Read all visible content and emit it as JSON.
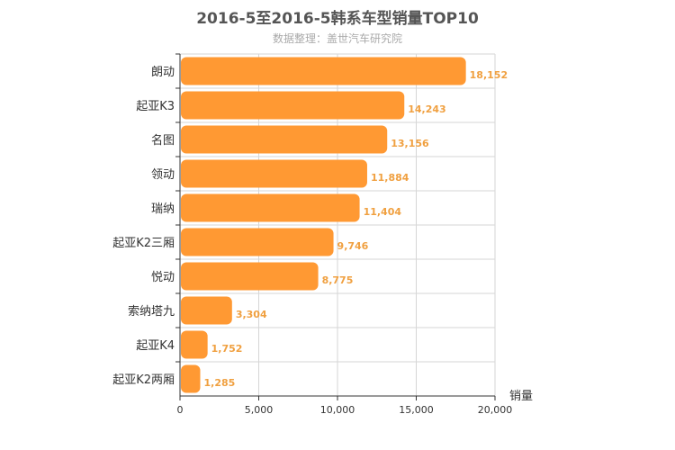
{
  "chart_data": {
    "type": "bar",
    "orientation": "horizontal",
    "title": "2016-5至2016-5韩系车型销量TOP10",
    "subtitle": "数据整理：盖世汽车研究院",
    "xlabel": "销量",
    "ylabel": "",
    "categories": [
      "朗动",
      "起亚K3",
      "名图",
      "领动",
      "瑞纳",
      "起亚K2三厢",
      "悦动",
      "索纳塔九",
      "起亚K4",
      "起亚K2两厢"
    ],
    "values": [
      18152,
      14243,
      13156,
      11884,
      11404,
      9746,
      8775,
      3304,
      1752,
      1285
    ],
    "value_labels": [
      "18,152",
      "14,243",
      "13,156",
      "11,884",
      "11,404",
      "9,746",
      "8,775",
      "3,304",
      "1,752",
      "1,285"
    ],
    "xlim": [
      0,
      20000
    ],
    "x_ticks": [
      0,
      5000,
      10000,
      15000,
      20000
    ],
    "x_tick_labels": [
      "0",
      "5,000",
      "10,000",
      "15,000",
      "20,000"
    ],
    "grid": true,
    "bar_color": "#ff9933",
    "label_color": "#f0a040"
  }
}
